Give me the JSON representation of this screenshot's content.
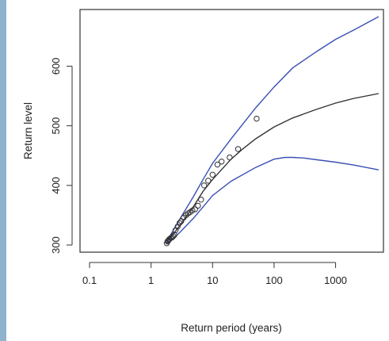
{
  "chart_data": {
    "type": "line",
    "title": "",
    "xlabel": "Return period (years)",
    "ylabel": "Return level",
    "x_scale": "log",
    "xlim": [
      0.07,
      6000
    ],
    "ylim": [
      288,
      695
    ],
    "x_ticks": [
      {
        "value": 0.1,
        "label": "0.1"
      },
      {
        "value": 1,
        "label": "1"
      },
      {
        "value": 10,
        "label": "10"
      },
      {
        "value": 100,
        "label": "100"
      },
      {
        "value": 1000,
        "label": "1000"
      }
    ],
    "y_ticks": [
      {
        "value": 300,
        "label": "300"
      },
      {
        "value": 400,
        "label": "400"
      },
      {
        "value": 500,
        "label": "500"
      },
      {
        "value": 600,
        "label": "600"
      }
    ],
    "grid": false,
    "series": [
      {
        "role": "estimate",
        "style": "line",
        "color": "#333333",
        "points": [
          [
            1.8,
            304
          ],
          [
            2,
            310
          ],
          [
            3,
            334
          ],
          [
            5,
            366
          ],
          [
            7,
            390
          ],
          [
            10,
            410
          ],
          [
            20,
            444
          ],
          [
            30,
            460
          ],
          [
            50,
            478
          ],
          [
            100,
            498
          ],
          [
            200,
            513
          ],
          [
            500,
            528
          ],
          [
            1000,
            538
          ],
          [
            2000,
            546
          ],
          [
            5000,
            554
          ]
        ]
      },
      {
        "role": "upper confidence bound",
        "style": "line",
        "color": "#3a4fb5",
        "points": [
          [
            1.8,
            304
          ],
          [
            2,
            314
          ],
          [
            3,
            345
          ],
          [
            5,
            383
          ],
          [
            7,
            410
          ],
          [
            10,
            437
          ],
          [
            20,
            478
          ],
          [
            50,
            530
          ],
          [
            100,
            565
          ],
          [
            200,
            597
          ],
          [
            500,
            625
          ],
          [
            1000,
            645
          ],
          [
            2000,
            661
          ],
          [
            5000,
            683
          ]
        ]
      },
      {
        "role": "lower confidence bound",
        "style": "line",
        "color": "#3a4fb5",
        "points": [
          [
            1.8,
            303
          ],
          [
            2,
            305
          ],
          [
            3,
            322
          ],
          [
            5,
            346
          ],
          [
            7,
            364
          ],
          [
            10,
            383
          ],
          [
            20,
            407
          ],
          [
            50,
            430
          ],
          [
            100,
            444
          ],
          [
            150,
            447
          ],
          [
            200,
            447
          ],
          [
            300,
            446
          ],
          [
            500,
            443
          ],
          [
            1000,
            439
          ],
          [
            2000,
            434
          ],
          [
            5000,
            426
          ]
        ]
      },
      {
        "role": "observed",
        "style": "points",
        "marker": "open-circle",
        "color": "#333333",
        "points": [
          [
            1.8,
            303
          ],
          [
            1.85,
            306
          ],
          [
            1.9,
            307
          ],
          [
            1.95,
            309
          ],
          [
            2.0,
            310
          ],
          [
            2.1,
            312
          ],
          [
            2.2,
            313
          ],
          [
            2.3,
            315
          ],
          [
            2.4,
            317
          ],
          [
            2.5,
            325
          ],
          [
            2.7,
            331
          ],
          [
            2.9,
            337
          ],
          [
            3.1,
            340
          ],
          [
            3.4,
            346
          ],
          [
            3.7,
            350
          ],
          [
            4.0,
            353
          ],
          [
            4.3,
            355
          ],
          [
            4.7,
            358
          ],
          [
            5.2,
            360
          ],
          [
            5.8,
            366
          ],
          [
            6.5,
            376
          ],
          [
            7.3,
            400
          ],
          [
            8.5,
            408
          ],
          [
            10,
            418
          ],
          [
            12,
            435
          ],
          [
            14,
            440
          ],
          [
            19,
            447
          ],
          [
            26,
            461
          ],
          [
            52,
            512
          ]
        ]
      }
    ]
  }
}
